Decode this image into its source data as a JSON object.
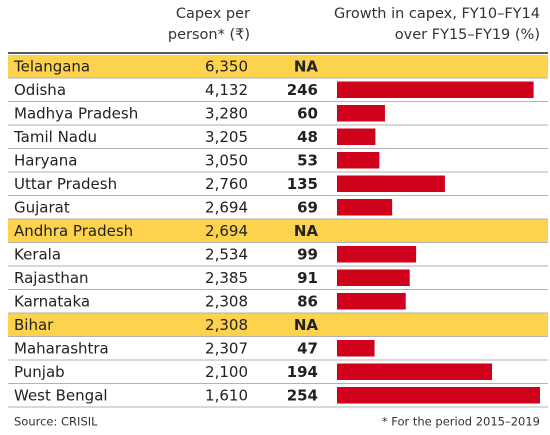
{
  "header": {
    "capex_lines": [
      "Capex per",
      "person* (₹)"
    ],
    "growth_lines": [
      "Growth in capex, FY10–FY14",
      "over FY15–FY19 (%)"
    ]
  },
  "highlight_color": "#fdd24c",
  "bar_color": "#d0021b",
  "rows": [
    {
      "state": "Telangana",
      "capex": "6,350",
      "growth": "NA",
      "highlight": true
    },
    {
      "state": "Odisha",
      "capex": "4,132",
      "growth": 246
    },
    {
      "state": "Madhya Pradesh",
      "capex": "3,280",
      "growth": 60
    },
    {
      "state": "Tamil Nadu",
      "capex": "3,205",
      "growth": 48
    },
    {
      "state": "Haryana",
      "capex": "3,050",
      "growth": 53
    },
    {
      "state": "Uttar Pradesh",
      "capex": "2,760",
      "growth": 135
    },
    {
      "state": "Gujarat",
      "capex": "2,694",
      "growth": 69
    },
    {
      "state": "Andhra Pradesh",
      "capex": "2,694",
      "growth": "NA",
      "highlight": true
    },
    {
      "state": "Kerala",
      "capex": "2,534",
      "growth": 99
    },
    {
      "state": "Rajasthan",
      "capex": "2,385",
      "growth": 91
    },
    {
      "state": "Karnataka",
      "capex": "2,308",
      "growth": 86
    },
    {
      "state": "Bihar",
      "capex": "2,308",
      "growth": "NA",
      "highlight": true
    },
    {
      "state": "Maharashtra",
      "capex": "2,307",
      "growth": 47
    },
    {
      "state": "Punjab",
      "capex": "2,100",
      "growth": 194
    },
    {
      "state": "West Bengal",
      "capex": "1,610",
      "growth": 254
    }
  ],
  "footer": {
    "source": "Source: CRISIL",
    "note": "* For the period 2015–2019"
  }
}
